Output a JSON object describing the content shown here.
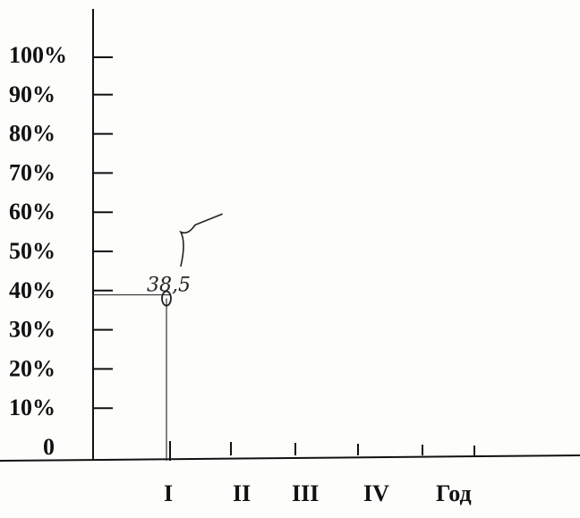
{
  "chart_data": {
    "type": "line",
    "title": "",
    "xlabel": "",
    "ylabel": "",
    "y_ticks": [
      "0",
      "10%",
      "20%",
      "30%",
      "40%",
      "50%",
      "60%",
      "70%",
      "80%",
      "90%",
      "100%"
    ],
    "ylim": [
      0,
      100
    ],
    "categories": [
      "I",
      "II",
      "III",
      "IV",
      "Год"
    ],
    "series": [
      {
        "values": [
          38,
          null,
          null,
          null,
          null
        ]
      }
    ],
    "annotations": [
      {
        "text": "38,5",
        "x": "I",
        "y": 38.5
      }
    ],
    "grid": false,
    "legend": "none"
  },
  "colors": {
    "ink": "#111111",
    "paper": "#fdfdfb"
  }
}
